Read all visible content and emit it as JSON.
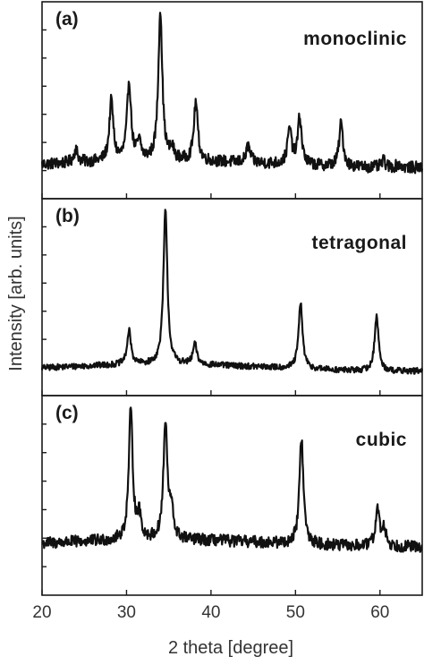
{
  "chart_data": {
    "type": "line",
    "xlabel": "2 theta [degree]",
    "ylabel": "Intensity [arb. units]",
    "xlim": [
      20,
      65
    ],
    "x_ticks": [
      20,
      30,
      40,
      50,
      60
    ],
    "y_tick_labels_shown": false,
    "panels": [
      {
        "panel_label": "(a)",
        "phase": "monoclinic",
        "baseline": 0.1,
        "noise": 0.035,
        "peaks": [
          {
            "x": 24.0,
            "y": 0.18
          },
          {
            "x": 28.2,
            "y": 0.46
          },
          {
            "x": 30.3,
            "y": 0.57
          },
          {
            "x": 31.5,
            "y": 0.2
          },
          {
            "x": 34.0,
            "y": 1.0
          },
          {
            "x": 35.4,
            "y": 0.16
          },
          {
            "x": 38.2,
            "y": 0.45
          },
          {
            "x": 40.7,
            "y": 0.1
          },
          {
            "x": 44.4,
            "y": 0.2
          },
          {
            "x": 49.3,
            "y": 0.31
          },
          {
            "x": 50.5,
            "y": 0.38
          },
          {
            "x": 55.4,
            "y": 0.36
          },
          {
            "x": 60.4,
            "y": 0.14
          },
          {
            "x": 62.2,
            "y": 0.12
          }
        ]
      },
      {
        "panel_label": "(b)",
        "phase": "tetragonal",
        "baseline": 0.06,
        "noise": 0.018,
        "peaks": [
          {
            "x": 30.3,
            "y": 0.26
          },
          {
            "x": 34.6,
            "y": 0.98
          },
          {
            "x": 38.1,
            "y": 0.18
          },
          {
            "x": 44.4,
            "y": 0.05
          },
          {
            "x": 50.6,
            "y": 0.45
          },
          {
            "x": 59.6,
            "y": 0.39
          }
        ]
      },
      {
        "panel_label": "(c)",
        "phase": "cubic",
        "baseline": 0.2,
        "noise": 0.035,
        "peaks": [
          {
            "x": 30.5,
            "y": 0.96
          },
          {
            "x": 31.5,
            "y": 0.33
          },
          {
            "x": 34.6,
            "y": 0.88
          },
          {
            "x": 35.3,
            "y": 0.36
          },
          {
            "x": 41.0,
            "y": 0.06
          },
          {
            "x": 50.7,
            "y": 0.83
          },
          {
            "x": 59.7,
            "y": 0.42
          },
          {
            "x": 60.5,
            "y": 0.3
          },
          {
            "x": 63.5,
            "y": 0.08
          }
        ]
      }
    ]
  }
}
